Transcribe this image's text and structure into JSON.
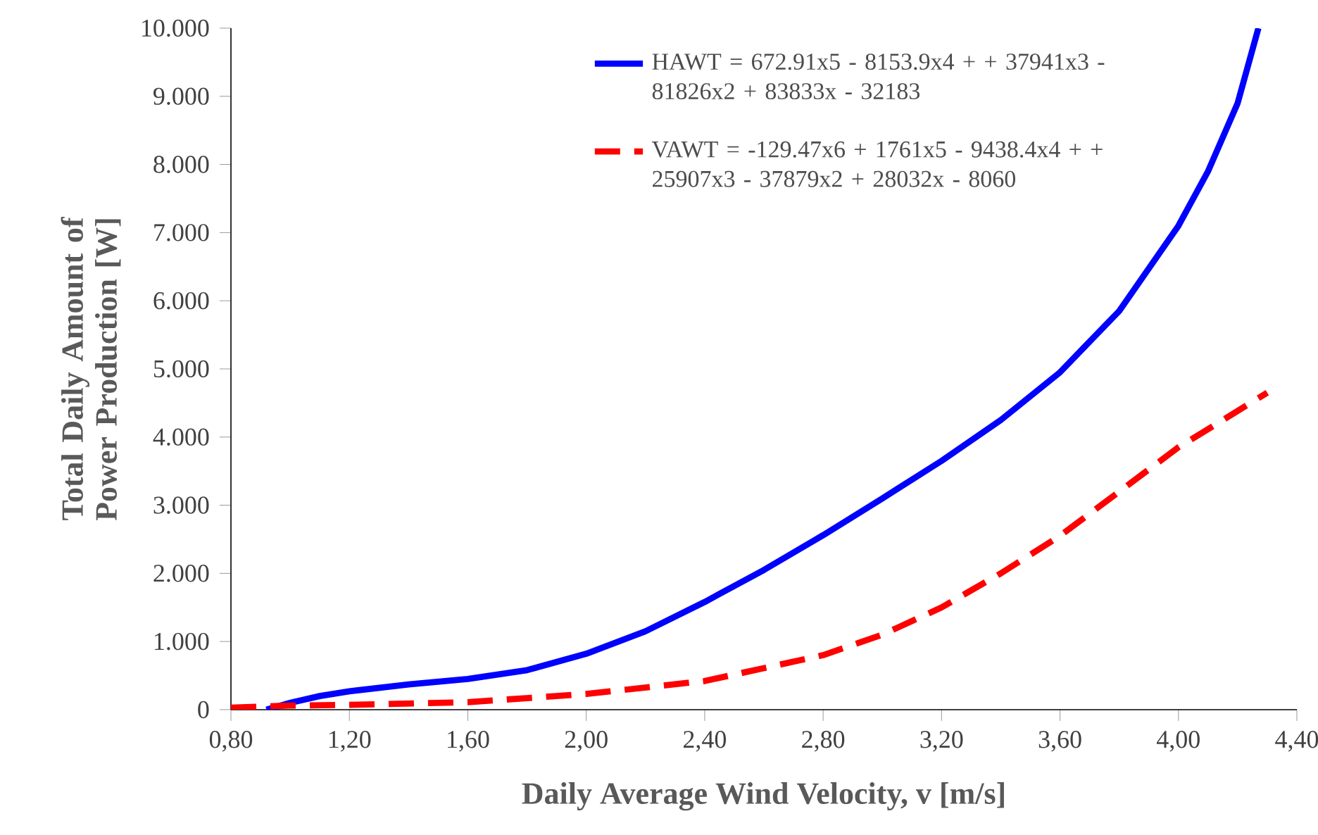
{
  "chart_data": {
    "type": "line",
    "xlabel": "Daily Average Wind Velocity, v [m/s]",
    "ylabel": "Total Daily Amount of Power Production [W]",
    "xlim": [
      0.8,
      4.4
    ],
    "xticks": [
      {
        "value": 0.8,
        "label": "0,80"
      },
      {
        "value": 1.2,
        "label": "1,20"
      },
      {
        "value": 1.6,
        "label": "1,60"
      },
      {
        "value": 2.0,
        "label": "2,00"
      },
      {
        "value": 2.4,
        "label": "2,40"
      },
      {
        "value": 2.8,
        "label": "2,80"
      },
      {
        "value": 3.2,
        "label": "3,20"
      },
      {
        "value": 3.6,
        "label": "3,60"
      },
      {
        "value": 4.0,
        "label": "4,00"
      },
      {
        "value": 4.4,
        "label": "4,40"
      }
    ],
    "ylim": [
      0,
      10000
    ],
    "yticks": [
      0,
      {
        "value": 1000,
        "label": "1.000"
      },
      {
        "value": 2000,
        "label": "2.000"
      },
      {
        "value": 3000,
        "label": "3.000"
      },
      {
        "value": 4000,
        "label": "4.000"
      },
      {
        "value": 5000,
        "label": "5.000"
      },
      {
        "value": 6000,
        "label": "6.000"
      },
      {
        "value": 7000,
        "label": "7.000"
      },
      {
        "value": 8000,
        "label": "8.000"
      },
      {
        "value": 9000,
        "label": "9.000"
      },
      {
        "value": 10000,
        "label": "10.000"
      }
    ],
    "legend": "top",
    "grid": false,
    "marker": "none",
    "series": [
      {
        "name": "HAWT = 672.91x5 - 8153.9x4 + + 37941x3 - 81826x2 + 83833x - 32183",
        "color": "#0000ff",
        "line_style": "solid",
        "x": [
          0.92,
          1.0,
          1.1,
          1.2,
          1.4,
          1.6,
          1.8,
          2.0,
          2.2,
          2.4,
          2.6,
          2.8,
          3.0,
          3.2,
          3.4,
          3.6,
          3.8,
          4.0,
          4.1,
          4.2,
          4.27
        ],
        "values": [
          0,
          100,
          200,
          270,
          370,
          450,
          580,
          820,
          1150,
          1580,
          2050,
          2560,
          3100,
          3650,
          4250,
          4950,
          5850,
          7100,
          7900,
          8900,
          10000
        ]
      },
      {
        "name": "VAWT = -129.47x6 + 1761x5 - 9438.4x4 + + 25907x3 - 37879x2 + 28032x - 8060",
        "color": "#ff0000",
        "line_style": "dashed",
        "x": [
          0.8,
          1.0,
          1.2,
          1.6,
          2.0,
          2.4,
          2.8,
          3.0,
          3.2,
          3.4,
          3.6,
          3.8,
          4.0,
          4.3
        ],
        "values": [
          30,
          60,
          70,
          110,
          230,
          420,
          800,
          1100,
          1500,
          2000,
          2550,
          3200,
          3850,
          4650
        ]
      }
    ]
  }
}
